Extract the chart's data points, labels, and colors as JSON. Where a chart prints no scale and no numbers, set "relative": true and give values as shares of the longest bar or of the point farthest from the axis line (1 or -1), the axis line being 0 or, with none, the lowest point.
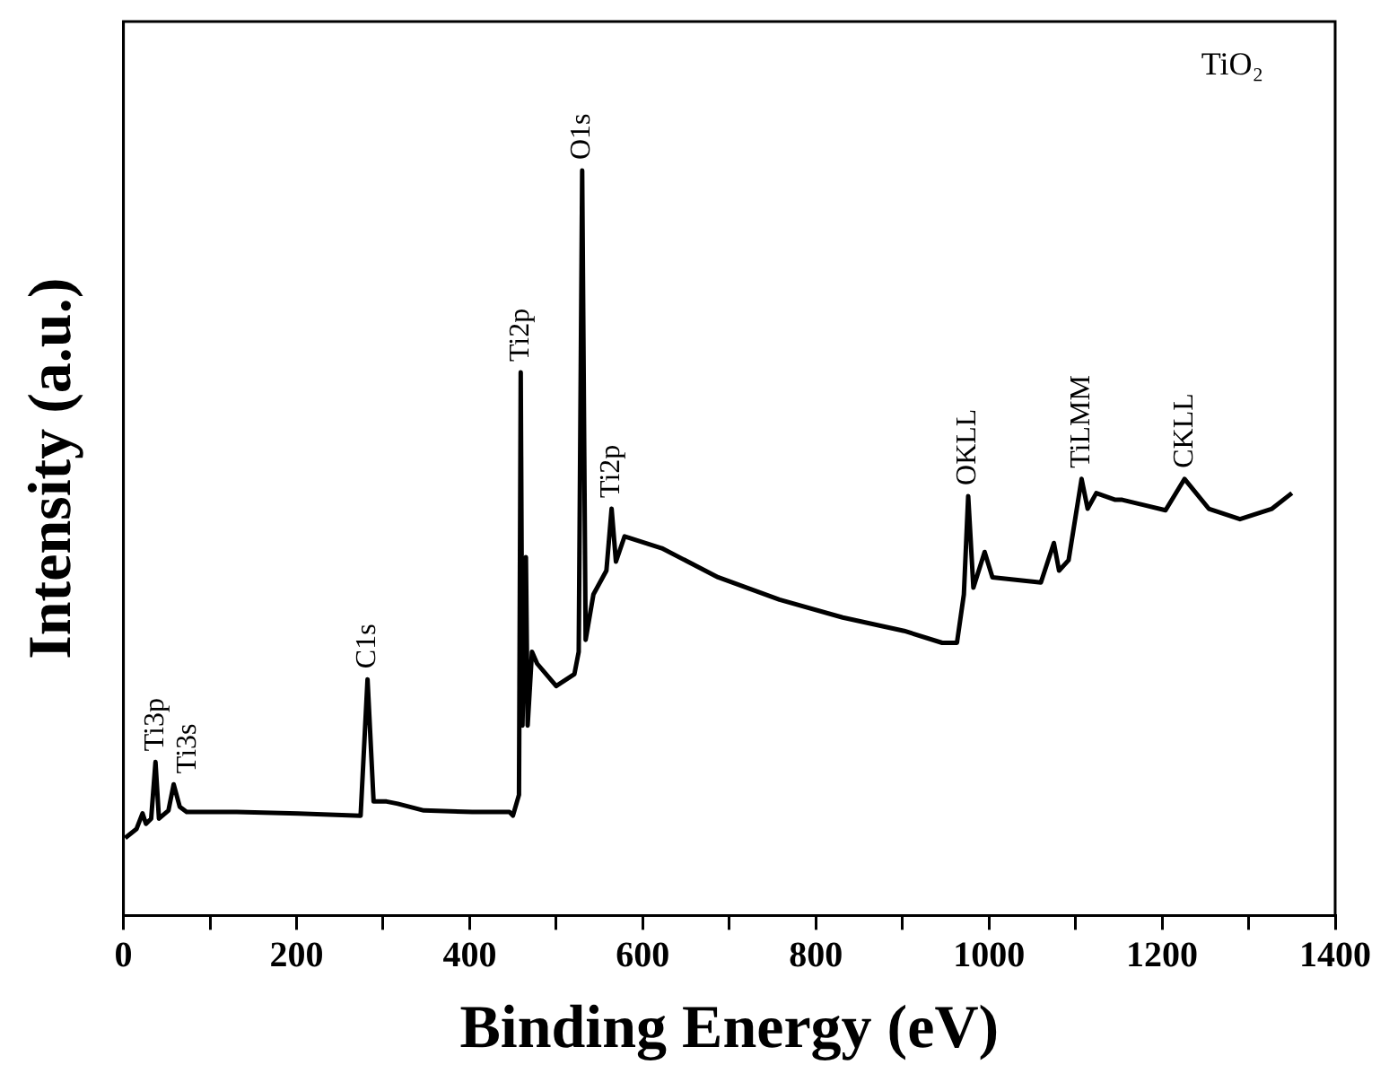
{
  "chart_data": {
    "type": "line",
    "xlabel": "Binding Energy (eV)",
    "ylabel": "Intensity (a.u.)",
    "relative": true,
    "xlim": [
      0,
      1400
    ],
    "xticks": [
      0,
      {
        "value": 100,
        "label": null
      },
      200,
      {
        "value": 300,
        "label": null
      },
      400,
      {
        "value": 500,
        "label": null
      },
      600,
      {
        "value": 700,
        "label": null
      },
      800,
      {
        "value": 900,
        "label": null
      },
      1000,
      {
        "value": 1100,
        "label": null
      },
      1200,
      {
        "value": 1300,
        "label": null
      },
      1400
    ],
    "grid": false,
    "legend": false,
    "marker": "none",
    "line_style": "solid",
    "series": [
      {
        "color": "#000000",
        "x": [
          2,
          15,
          22,
          26,
          32,
          37,
          41,
          52,
          58,
          65,
          73,
          131,
          202,
          274,
          282,
          289,
          304,
          317,
          347,
          403,
          446,
          450,
          457,
          459,
          461,
          465,
          467,
          472,
          478,
          500,
          521,
          526,
          530,
          534,
          543,
          558,
          564,
          569,
          579,
          622,
          687,
          758,
          831,
          902,
          946,
          963,
          971,
          976,
          982,
          995,
          1004,
          1060,
          1075,
          1081,
          1092,
          1107,
          1114,
          1124,
          1146,
          1154,
          1204,
          1226,
          1254,
          1290,
          1327,
          1350
        ],
        "values": [
          0.104,
          0.116,
          0.137,
          0.123,
          0.13,
          0.206,
          0.13,
          0.141,
          0.176,
          0.146,
          0.139,
          0.139,
          0.137,
          0.134,
          0.317,
          0.153,
          0.153,
          0.15,
          0.141,
          0.139,
          0.139,
          0.134,
          0.162,
          0.729,
          0.255,
          0.481,
          0.255,
          0.354,
          0.338,
          0.308,
          0.324,
          0.354,
          1.0,
          0.37,
          0.431,
          0.463,
          0.546,
          0.475,
          0.509,
          0.493,
          0.454,
          0.424,
          0.4,
          0.382,
          0.366,
          0.366,
          0.431,
          0.563,
          0.44,
          0.488,
          0.454,
          0.447,
          0.5,
          0.463,
          0.477,
          0.586,
          0.546,
          0.567,
          0.558,
          0.558,
          0.544,
          0.586,
          0.546,
          0.532,
          0.546,
          0.567
        ]
      }
    ],
    "annotations": [
      {
        "text": "Ti3p",
        "x": 37,
        "y": 0.206
      },
      {
        "text": "Ti3s",
        "x": 58,
        "y": 0.176
      },
      {
        "text": "C1s",
        "x": 282,
        "y": 0.317
      },
      {
        "text": "Ti2p",
        "x": 459,
        "y": 0.729
      },
      {
        "text": "O1s",
        "x": 530,
        "y": 1.0
      },
      {
        "text": "Ti2p",
        "x": 564,
        "y": 0.546
      },
      {
        "text": "OKLL",
        "x": 976,
        "y": 0.563
      },
      {
        "text": "TiLMM",
        "x": 1107,
        "y": 0.586
      },
      {
        "text": "CKLL",
        "x": 1226,
        "y": 0.586
      },
      "TiO₂"
    ]
  }
}
